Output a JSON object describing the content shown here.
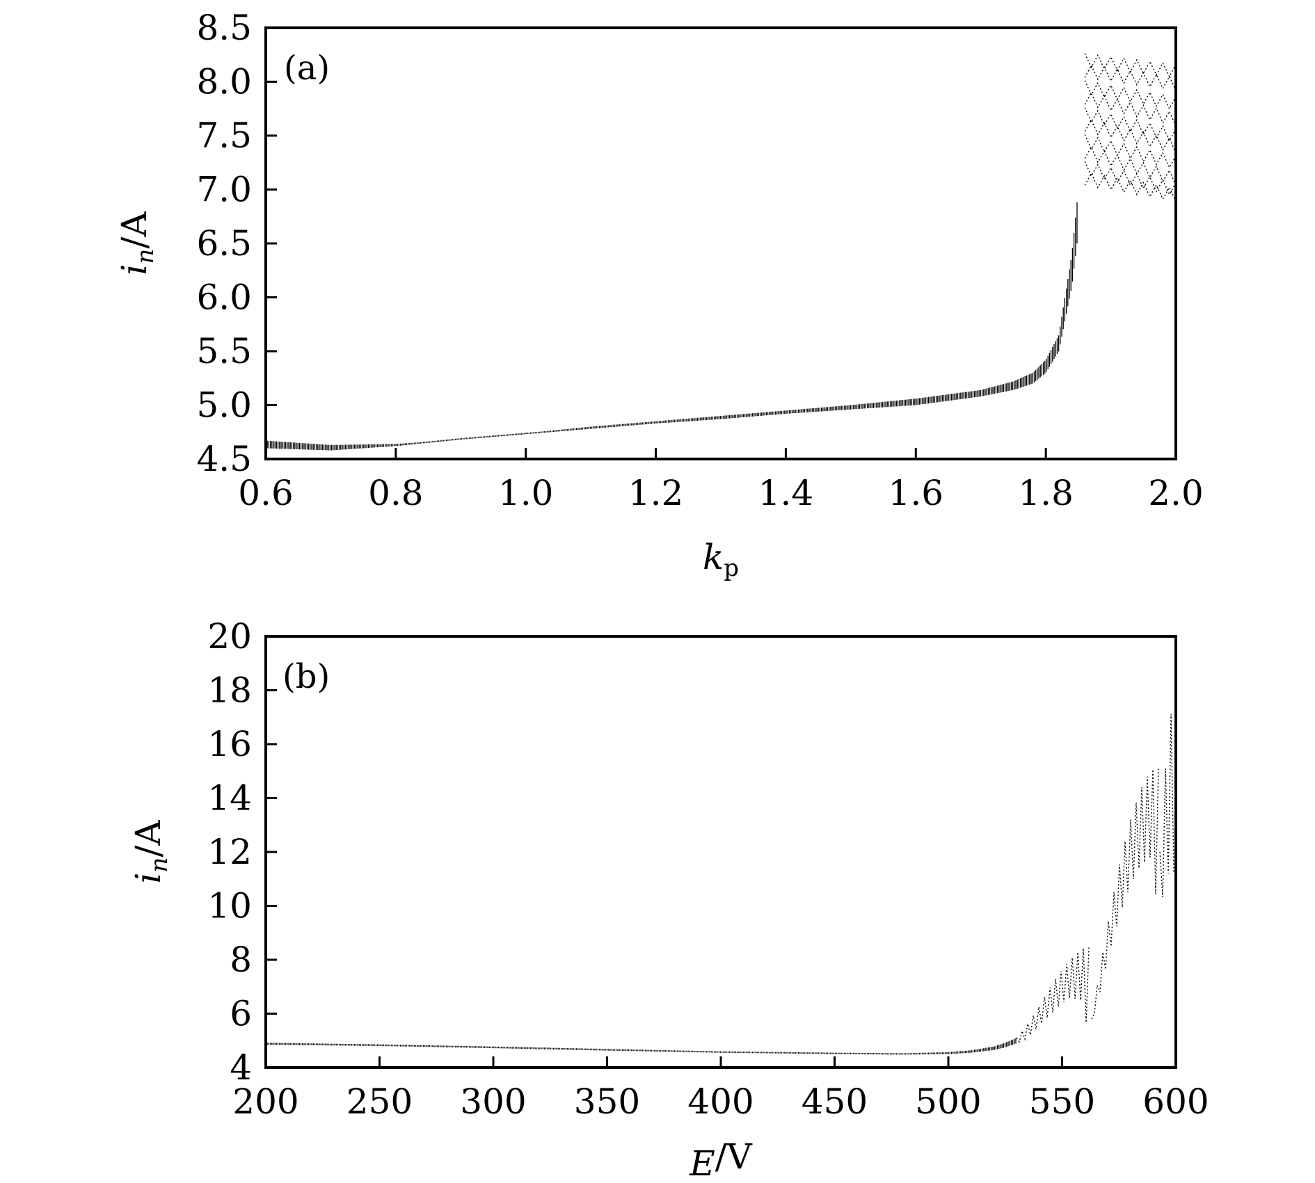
{
  "chart_data": [
    {
      "type": "scatter",
      "panel_label": "(a)",
      "xlabel_var": "k",
      "xlabel_sub": "p",
      "xlabel_unit": "",
      "ylabel_var": "i",
      "ylabel_sub": "n",
      "ylabel_unit": "/A",
      "xlim": [
        0.6,
        2.0
      ],
      "ylim": [
        4.5,
        8.5
      ],
      "xticks": [
        "0.6",
        "0.8",
        "1.0",
        "1.2",
        "1.4",
        "1.6",
        "1.8",
        "2.0"
      ],
      "yticks": [
        "4.5",
        "5.0",
        "5.5",
        "6.0",
        "6.5",
        "7.0",
        "7.5",
        "8.0",
        "8.5"
      ],
      "grid": false,
      "series": [
        {
          "part": "band",
          "x": [
            0.6,
            0.7,
            0.8,
            0.9,
            1.0,
            1.1,
            1.2,
            1.3,
            1.4,
            1.5,
            1.6,
            1.7,
            1.75,
            1.78,
            1.8,
            1.82,
            1.84,
            1.85
          ],
          "y_low": [
            4.6,
            4.58,
            4.62,
            4.68,
            4.73,
            4.78,
            4.83,
            4.87,
            4.92,
            4.96,
            5.0,
            5.08,
            5.14,
            5.2,
            5.3,
            5.5,
            6.1,
            6.6
          ],
          "y_high": [
            4.67,
            4.63,
            4.64,
            4.68,
            4.74,
            4.8,
            4.85,
            4.9,
            4.95,
            5.0,
            5.06,
            5.14,
            5.22,
            5.3,
            5.42,
            5.65,
            6.4,
            7.0
          ]
        },
        {
          "part": "scatter",
          "x_start": 1.86,
          "x_end": 2.0,
          "y_start": [
            8.2,
            8.1,
            7.95,
            7.85,
            7.7,
            7.6,
            7.45,
            7.35,
            7.2,
            7.1
          ],
          "y_end": [
            8.1,
            7.98,
            7.8,
            7.65,
            7.5,
            7.4,
            7.25,
            7.1,
            7.0,
            6.95
          ]
        }
      ]
    },
    {
      "type": "scatter",
      "panel_label": "(b)",
      "xlabel_var": "E",
      "xlabel_sub": "",
      "xlabel_unit": "/V",
      "ylabel_var": "i",
      "ylabel_sub": "n",
      "ylabel_unit": "/A",
      "xlim": [
        200,
        600
      ],
      "ylim": [
        4,
        20
      ],
      "xticks": [
        "200",
        "250",
        "300",
        "350",
        "400",
        "450",
        "500",
        "550",
        "600"
      ],
      "yticks": [
        "4",
        "6",
        "8",
        "10",
        "12",
        "14",
        "16",
        "18",
        "20"
      ],
      "grid": false,
      "series": [
        {
          "part": "band",
          "x": [
            200,
            250,
            300,
            350,
            400,
            450,
            480,
            500,
            510,
            520,
            525,
            530
          ],
          "y_low": [
            4.85,
            4.8,
            4.72,
            4.63,
            4.55,
            4.5,
            4.48,
            4.5,
            4.55,
            4.65,
            4.75,
            4.9
          ],
          "y_high": [
            4.92,
            4.86,
            4.78,
            4.69,
            4.6,
            4.55,
            4.53,
            4.57,
            4.64,
            4.78,
            4.92,
            5.1
          ]
        },
        {
          "part": "oscillation",
          "segments": [
            {
              "x_start": 530,
              "x_end": 563,
              "y_top": [
                5.1,
                5.6,
                6.2,
                6.9,
                7.5,
                8.0,
                8.4,
                8.5
              ],
              "y_bottom": [
                4.9,
                5.1,
                5.5,
                5.9,
                6.3,
                6.6,
                6.5,
                4.8
              ]
            },
            {
              "x_start": 563,
              "x_end": 593,
              "y_top": [
                5.8,
                8.0,
                10.0,
                11.8,
                13.2,
                14.3,
                15.0,
                15.2
              ],
              "y_bottom": [
                5.6,
                7.0,
                8.5,
                9.8,
                10.8,
                11.5,
                11.8,
                9.4
              ]
            },
            {
              "x_start": 593,
              "x_end": 600,
              "y_top": [
                12.0,
                15.0,
                17.0,
                18.2
              ],
              "y_bottom": [
                9.8,
                10.8,
                11.5,
                11.0
              ]
            }
          ]
        }
      ]
    }
  ]
}
